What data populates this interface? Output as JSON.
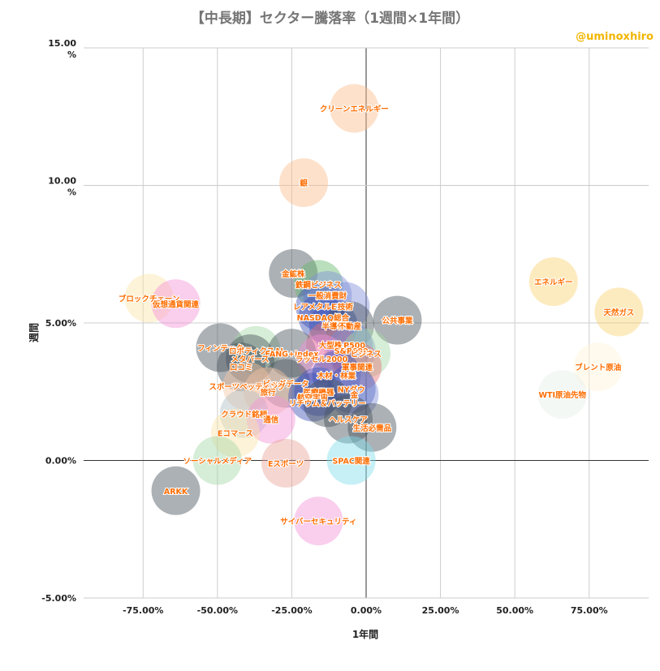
{
  "chart_data": {
    "type": "scatter",
    "title": "【中長期】セクター騰落率（1週間×1年間）",
    "watermark": "@uminoxhiro",
    "xlabel": "1年間",
    "ylabel": "週間",
    "xlim": [
      -0.95,
      0.95
    ],
    "ylim": [
      -0.05,
      0.15
    ],
    "x_ticks": [
      -0.75,
      -0.5,
      -0.25,
      0,
      0.25,
      0.5,
      0.75
    ],
    "x_tick_labels": [
      "-75.00%",
      "-50.00%",
      "-25.00%",
      "0.00%",
      "25.00%",
      "50.00%",
      "75.00%"
    ],
    "y_ticks": [
      -0.05,
      0,
      0.05,
      0.1,
      0.15
    ],
    "y_tick_labels": [
      "-5.00%",
      "0.00%",
      "5.00%",
      "10.00\n%",
      "15.00\n%"
    ],
    "grid": true,
    "legend": "none",
    "label_color": "#ff6d01",
    "points": [
      {
        "label": "クリーンエネルギー",
        "x": -0.04,
        "y": 0.128,
        "color": "#fbbc8c"
      },
      {
        "label": "銀",
        "x": -0.21,
        "y": 0.101,
        "color": "#fbbc8c"
      },
      {
        "label": "金鉱株",
        "x": -0.245,
        "y": 0.068,
        "color": "#46535b"
      },
      {
        "label": "鉄鋼ビジネス",
        "x": -0.16,
        "y": 0.064,
        "color": "#66b86d"
      },
      {
        "label": "一般消費財",
        "x": -0.13,
        "y": 0.06,
        "color": "#7e8fd6"
      },
      {
        "label": "レアメタルETF",
        "x": -0.155,
        "y": 0.056,
        "color": "#3f51b5"
      },
      {
        "label": "技術",
        "x": -0.07,
        "y": 0.056,
        "color": "#7e8fd6"
      },
      {
        "label": "NASDAQ総合",
        "x": -0.145,
        "y": 0.052,
        "color": "#3f51b5"
      },
      {
        "label": "公共事業",
        "x": 0.105,
        "y": 0.051,
        "color": "#46535b"
      },
      {
        "label": "半導体",
        "x": -0.11,
        "y": 0.049,
        "color": "#3f51b5"
      },
      {
        "label": "不動産",
        "x": -0.055,
        "y": 0.049,
        "color": "#46535b"
      },
      {
        "label": "ブロックチェーン",
        "x": -0.73,
        "y": 0.059,
        "color": "#fbe5a8"
      },
      {
        "label": "仮想通貨関連",
        "x": -0.64,
        "y": 0.057,
        "color": "#f492d8"
      },
      {
        "label": "エネルギー",
        "x": 0.63,
        "y": 0.065,
        "color": "#fbd373"
      },
      {
        "label": "天然ガス",
        "x": 0.85,
        "y": 0.054,
        "color": "#fbd373"
      },
      {
        "label": "ブレント原油",
        "x": 0.78,
        "y": 0.034,
        "color": "#fff3d6"
      },
      {
        "label": "WTI原油先物",
        "x": 0.66,
        "y": 0.024,
        "color": "#e6efe8"
      },
      {
        "label": "S&P500",
        "x": -0.06,
        "y": 0.042,
        "color": "#7e8fd6"
      },
      {
        "label": "大型株",
        "x": -0.12,
        "y": 0.042,
        "color": "#e57373"
      },
      {
        "label": "フィンテック",
        "x": -0.49,
        "y": 0.041,
        "color": "#46535b"
      },
      {
        "label": "ロボティクスAI",
        "x": -0.37,
        "y": 0.04,
        "color": "#a5d6a7"
      },
      {
        "label": "S&P600",
        "x": -0.05,
        "y": 0.04,
        "color": "#7e8fd6"
      },
      {
        "label": "FANG+index",
        "x": -0.25,
        "y": 0.039,
        "color": "#46535b"
      },
      {
        "label": "ビジネス",
        "x": 0.0,
        "y": 0.039,
        "color": "#a5d6a7"
      },
      {
        "label": "メタバース",
        "x": -0.39,
        "y": 0.037,
        "color": "#46535b"
      },
      {
        "label": "ラッセル2000",
        "x": -0.15,
        "y": 0.037,
        "color": "#f492d8"
      },
      {
        "label": "口コミ",
        "x": -0.42,
        "y": 0.034,
        "color": "#46535b"
      },
      {
        "label": "軍事関連",
        "x": -0.03,
        "y": 0.034,
        "color": "#e57373"
      },
      {
        "label": "木材・林業",
        "x": -0.1,
        "y": 0.031,
        "color": "#3f51b5"
      },
      {
        "label": "ビッグデータ",
        "x": -0.27,
        "y": 0.028,
        "color": "#46535b"
      },
      {
        "label": "NYダウ",
        "x": -0.05,
        "y": 0.026,
        "color": "#3f51b5"
      },
      {
        "label": "スポーツベッティング",
        "x": -0.4,
        "y": 0.027,
        "color": "#f7c6a5"
      },
      {
        "label": "旅行",
        "x": -0.33,
        "y": 0.025,
        "color": "#f7c6a5"
      },
      {
        "label": "医療機器",
        "x": -0.16,
        "y": 0.025,
        "color": "#3f51b5"
      },
      {
        "label": "金",
        "x": -0.04,
        "y": 0.024,
        "color": "#7e8fd6"
      },
      {
        "label": "航空宇宙",
        "x": -0.18,
        "y": 0.023,
        "color": "#3f51b5"
      },
      {
        "label": "リチウム＆バッテリー",
        "x": -0.13,
        "y": 0.021,
        "color": "#46535b"
      },
      {
        "label": "クラウド銘柄",
        "x": -0.41,
        "y": 0.017,
        "color": "#b0bec5"
      },
      {
        "label": "通信",
        "x": -0.32,
        "y": 0.015,
        "color": "#f492d8"
      },
      {
        "label": "ヘルスケア",
        "x": -0.06,
        "y": 0.015,
        "color": "#46535b"
      },
      {
        "label": "生活必需品",
        "x": 0.02,
        "y": 0.012,
        "color": "#46535b"
      },
      {
        "label": "Eコマース",
        "x": -0.44,
        "y": 0.01,
        "color": "#fbe5a8"
      },
      {
        "label": "ソーシャルメディア",
        "x": -0.5,
        "y": 0.0,
        "color": "#a5d6a7"
      },
      {
        "label": "SPAC関連",
        "x": -0.05,
        "y": 0.0,
        "color": "#80deea"
      },
      {
        "label": "Eスポーツ",
        "x": -0.27,
        "y": -0.001,
        "color": "#e8a598"
      },
      {
        "label": "ARKK",
        "x": -0.64,
        "y": -0.011,
        "color": "#46535b"
      },
      {
        "label": "サイバーセキュリティ",
        "x": -0.16,
        "y": -0.022,
        "color": "#f492d8"
      }
    ]
  }
}
